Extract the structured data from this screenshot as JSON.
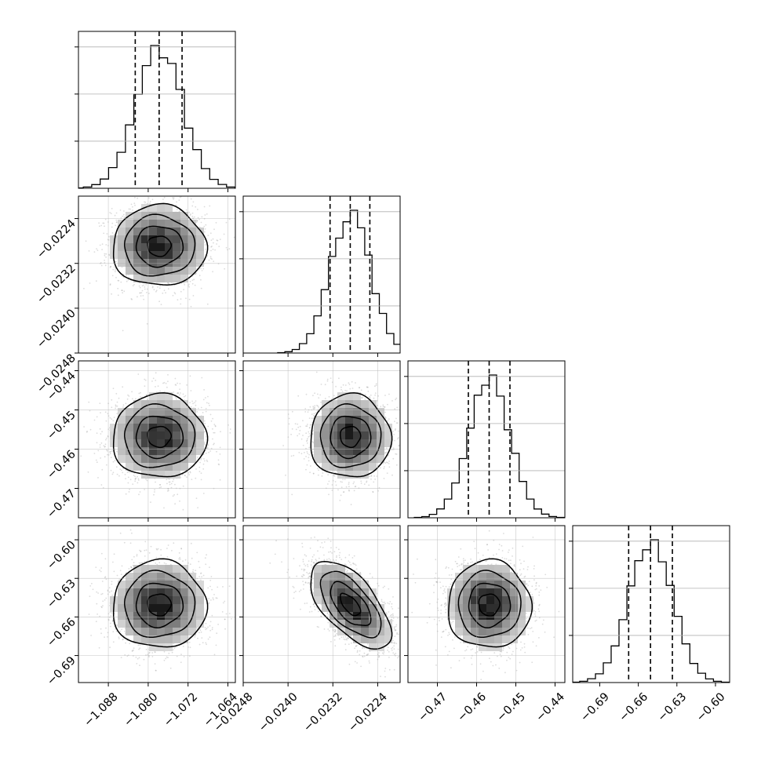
{
  "chart_data": {
    "type": "corner",
    "title": "",
    "grid": true,
    "parameters": [
      {
        "xlim": [
          -1.094,
          -1.0625
        ],
        "ticks": [
          -1.088,
          -1.08,
          -1.072,
          -1.064
        ],
        "tick_labels": [
          "−1.088",
          "−1.080",
          "−1.072",
          "−1.064"
        ],
        "quantiles": [
          -1.0826,
          -1.0778,
          -1.0732
        ],
        "mean": -1.0778,
        "sd": 0.0047
      },
      {
        "xlim": [
          -0.0248,
          -0.022
        ],
        "ticks": [
          -0.0248,
          -0.024,
          -0.0232,
          -0.0224
        ],
        "tick_labels": [
          "−0.0248",
          "−0.0240",
          "−0.0232",
          "−0.0224"
        ],
        "quantiles": [
          -0.02325,
          -0.02289,
          -0.02254
        ],
        "mean": -0.02289,
        "sd": 0.00036
      },
      {
        "xlim": [
          -0.4775,
          -0.4375
        ],
        "ticks": [
          -0.47,
          -0.46,
          -0.45,
          -0.44
        ],
        "tick_labels": [
          "−0.47",
          "−0.46",
          "−0.45",
          "−0.44"
        ],
        "quantiles": [
          -0.4621,
          -0.4568,
          -0.4515
        ],
        "mean": -0.4568,
        "sd": 0.0053
      },
      {
        "xlim": [
          -0.711,
          -0.589
        ],
        "ticks": [
          -0.69,
          -0.66,
          -0.63,
          -0.6
        ],
        "tick_labels": [
          "−0.69",
          "−0.66",
          "−0.63",
          "−0.60"
        ],
        "quantiles": [
          -0.6675,
          -0.6505,
          -0.6335
        ],
        "mean": -0.6505,
        "sd": 0.017
      }
    ],
    "correlations": [
      {
        "pair": [
          0,
          1
        ],
        "rho": 0.0
      },
      {
        "pair": [
          0,
          2
        ],
        "rho": 0.0
      },
      {
        "pair": [
          1,
          2
        ],
        "rho": 0.0
      },
      {
        "pair": [
          0,
          3
        ],
        "rho": 0.0
      },
      {
        "pair": [
          1,
          3
        ],
        "rho": -0.62
      },
      {
        "pair": [
          2,
          3
        ],
        "rho": 0.0
      }
    ],
    "contour_levels_sigma": [
      0.5,
      1.0,
      1.5,
      2.0
    ],
    "histogram_bins": 20
  }
}
